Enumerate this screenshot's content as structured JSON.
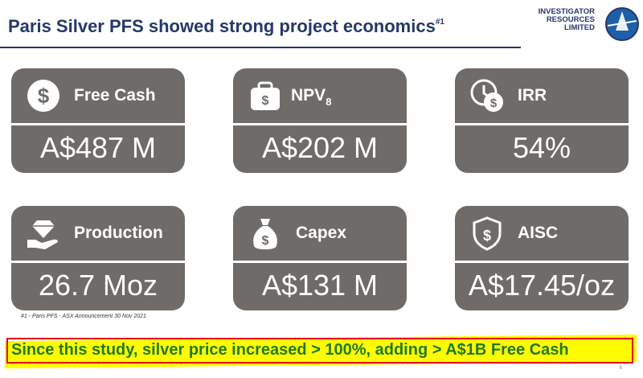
{
  "slide": {
    "title": "Paris Silver PFS showed strong project economics",
    "title_sup": "#1",
    "logo_lines": [
      "INVESTIGATOR",
      "RESOURCES",
      "LIMITED"
    ],
    "footnote": "#1 - Paris PFS - ASX Announcement 30 Nov 2021",
    "callout": "Since this study, silver price increased > 100%, adding > A$1B Free Cash",
    "page_number": "6"
  },
  "cards": [
    {
      "label": "Free Cash",
      "value": "A$487 M",
      "icon": "dollar-circle-icon"
    },
    {
      "label": "NPV",
      "label_sub": "8",
      "value": "A$202 M",
      "icon": "briefcase-dollar-icon"
    },
    {
      "label": "IRR",
      "value": "54%",
      "icon": "clock-dollar-icon"
    },
    {
      "label": "Production",
      "value": "26.7 Moz",
      "icon": "hand-diamond-icon"
    },
    {
      "label": "Capex",
      "value": "A$131 M",
      "icon": "money-bag-icon"
    },
    {
      "label": "AISC",
      "value": "A$17.45/oz",
      "icon": "shield-dollar-icon"
    }
  ],
  "colors": {
    "title": "#25386b",
    "card": "#6f6b68",
    "highlight": "#fffc00",
    "callout_text": "#1f7a1f",
    "callout_border": "#e3001b"
  }
}
